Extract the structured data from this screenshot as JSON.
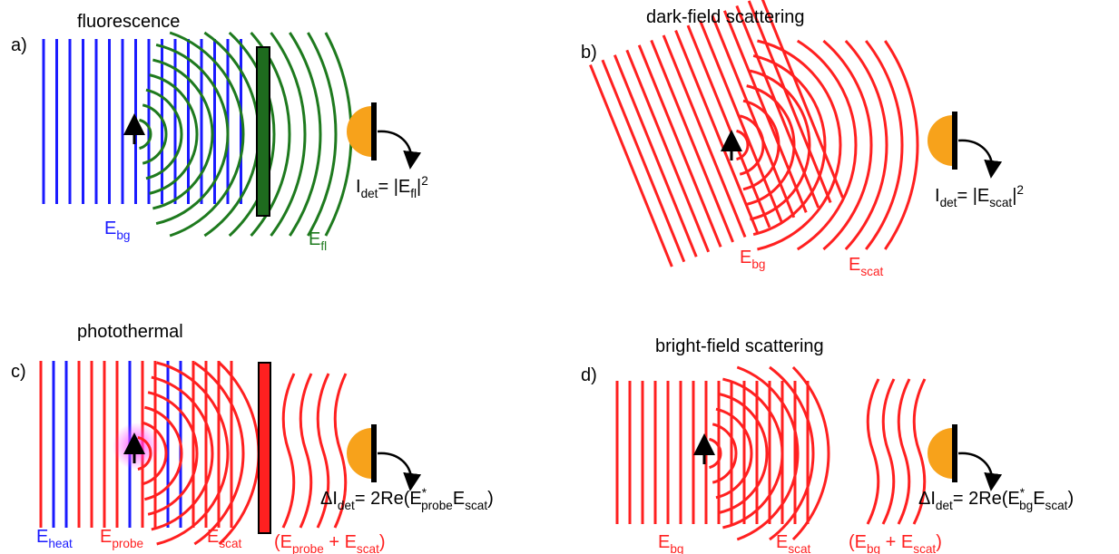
{
  "panels": [
    {
      "label": "a)",
      "title": "fluorescence",
      "labels": [
        {
          "color": "#1a1aff",
          "parts": [
            {
              "text": "E"
            },
            {
              "text": "bg",
              "style": "sub"
            }
          ]
        },
        {
          "color": "#1e7a1e",
          "parts": [
            {
              "text": "E"
            },
            {
              "text": "fl",
              "style": "sub"
            }
          ]
        }
      ],
      "formula": [
        {
          "text": "I"
        },
        {
          "text": "det",
          "style": "sub"
        },
        {
          "text": "= |E"
        },
        {
          "text": "fl",
          "style": "sub"
        },
        {
          "text": "|"
        },
        {
          "text": "2",
          "style": "sup"
        }
      ]
    },
    {
      "label": "b)",
      "title": "dark-field scattering",
      "labels": [
        {
          "color": "#ff2020",
          "parts": [
            {
              "text": "E"
            },
            {
              "text": "bg",
              "style": "sub"
            }
          ]
        },
        {
          "color": "#ff2020",
          "parts": [
            {
              "text": "E"
            },
            {
              "text": "scat",
              "style": "sub"
            }
          ]
        }
      ],
      "formula": [
        {
          "text": "I"
        },
        {
          "text": "det",
          "style": "sub"
        },
        {
          "text": "= |E"
        },
        {
          "text": "scat",
          "style": "sub"
        },
        {
          "text": "|"
        },
        {
          "text": "2",
          "style": "sup"
        }
      ]
    },
    {
      "label": "c)",
      "title": "photothermal",
      "labels": [
        {
          "color": "#1a1aff",
          "parts": [
            {
              "text": "E"
            },
            {
              "text": "heat",
              "style": "sub"
            }
          ]
        },
        {
          "color": "#ff2020",
          "parts": [
            {
              "text": "E"
            },
            {
              "text": "probe",
              "style": "sub"
            }
          ]
        },
        {
          "color": "#ff2020",
          "parts": [
            {
              "text": "E"
            },
            {
              "text": "scat",
              "style": "sub"
            }
          ]
        },
        {
          "color": "#ff2020",
          "parts": [
            {
              "text": "(E"
            },
            {
              "text": "probe",
              "style": "sub"
            },
            {
              "text": " + E"
            },
            {
              "text": "scat",
              "style": "sub"
            },
            {
              "text": ")"
            }
          ]
        }
      ],
      "formula": [
        {
          "text": "ΔI"
        },
        {
          "text": "det",
          "style": "sub"
        },
        {
          "text": "= 2Re(E"
        },
        {
          "text": "*",
          "style": "sup"
        },
        {
          "text": "probe",
          "style": "sub"
        },
        {
          "text": "E"
        },
        {
          "text": "scat",
          "style": "sub"
        },
        {
          "text": ")"
        }
      ]
    },
    {
      "label": "d)",
      "title": "bright-field scattering",
      "labels": [
        {
          "color": "#ff2020",
          "parts": [
            {
              "text": "E"
            },
            {
              "text": "bg",
              "style": "sub"
            }
          ]
        },
        {
          "color": "#ff2020",
          "parts": [
            {
              "text": "E"
            },
            {
              "text": "scat",
              "style": "sub"
            }
          ]
        },
        {
          "color": "#ff2020",
          "parts": [
            {
              "text": "(E"
            },
            {
              "text": "bg",
              "style": "sub"
            },
            {
              "text": " + E"
            },
            {
              "text": "scat",
              "style": "sub"
            },
            {
              "text": ")"
            }
          ]
        }
      ],
      "formula": [
        {
          "text": "ΔI"
        },
        {
          "text": "det",
          "style": "sub"
        },
        {
          "text": "= 2Re(E"
        },
        {
          "text": "*",
          "style": "sup"
        },
        {
          "text": "bg",
          "style": "sub"
        },
        {
          "text": "E"
        },
        {
          "text": "scat",
          "style": "sub"
        },
        {
          "text": ")"
        }
      ]
    }
  ]
}
